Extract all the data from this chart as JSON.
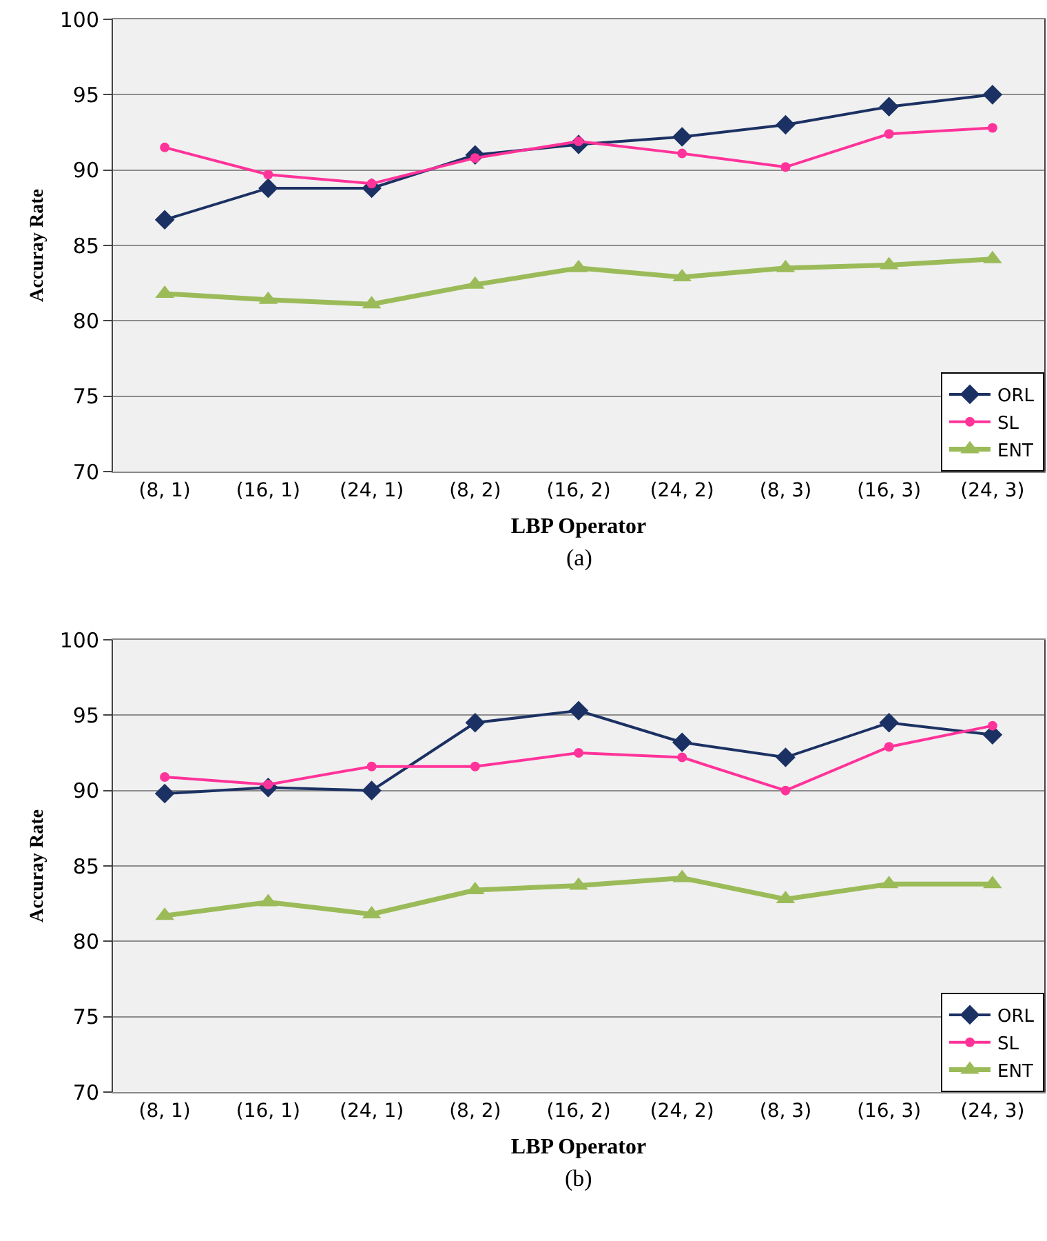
{
  "chart_data": [
    {
      "type": "line",
      "xlabel": "LBP Operator",
      "ylabel": "Accuray Rate",
      "categories": [
        "(8, 1)",
        "(16, 1)",
        "(24, 1)",
        "(8, 2)",
        "(16, 2)",
        "(24, 2)",
        "(8, 3)",
        "(16, 3)",
        "(24, 3)"
      ],
      "series": [
        {
          "name": "ORL",
          "color": "#1c3163",
          "marker": "diamond",
          "values": [
            86.7,
            88.8,
            88.8,
            91.0,
            91.7,
            92.2,
            93.0,
            94.2,
            95.0
          ]
        },
        {
          "name": "SL",
          "color": "#ff3399",
          "marker": "circle",
          "values": [
            91.5,
            89.7,
            89.1,
            90.8,
            91.9,
            91.1,
            90.2,
            92.4,
            92.8
          ]
        },
        {
          "name": "ENT",
          "color": "#9bbb59",
          "marker": "triangle",
          "values": [
            81.8,
            81.4,
            81.1,
            82.4,
            83.5,
            82.9,
            83.5,
            83.7,
            84.1
          ]
        }
      ],
      "ylim": [
        70,
        100
      ],
      "yticks": [
        70,
        75,
        80,
        85,
        90,
        95,
        100
      ],
      "grid": "y",
      "legend": "bottom right",
      "annotations": [
        "(a)"
      ]
    },
    {
      "type": "line",
      "xlabel": "LBP Operator",
      "ylabel": "Accuray Rate",
      "categories": [
        "(8, 1)",
        "(16, 1)",
        "(24, 1)",
        "(8, 2)",
        "(16, 2)",
        "(24, 2)",
        "(8, 3)",
        "(16, 3)",
        "(24, 3)"
      ],
      "series": [
        {
          "name": "ORL",
          "color": "#1c3163",
          "marker": "diamond",
          "values": [
            89.8,
            90.2,
            90.0,
            94.5,
            95.3,
            93.2,
            92.2,
            94.5,
            93.7
          ]
        },
        {
          "name": "SL",
          "color": "#ff3399",
          "marker": "circle",
          "values": [
            90.9,
            90.4,
            91.6,
            91.6,
            92.5,
            92.2,
            90.0,
            92.9,
            94.3
          ]
        },
        {
          "name": "ENT",
          "color": "#9bbb59",
          "marker": "triangle",
          "values": [
            81.7,
            82.6,
            81.8,
            83.4,
            83.7,
            84.2,
            82.8,
            83.8,
            83.8
          ]
        }
      ],
      "ylim": [
        70,
        100
      ],
      "yticks": [
        70,
        75,
        80,
        85,
        90,
        95,
        100
      ],
      "grid": "y",
      "legend": "bottom right",
      "annotations": [
        "(b)"
      ]
    }
  ]
}
